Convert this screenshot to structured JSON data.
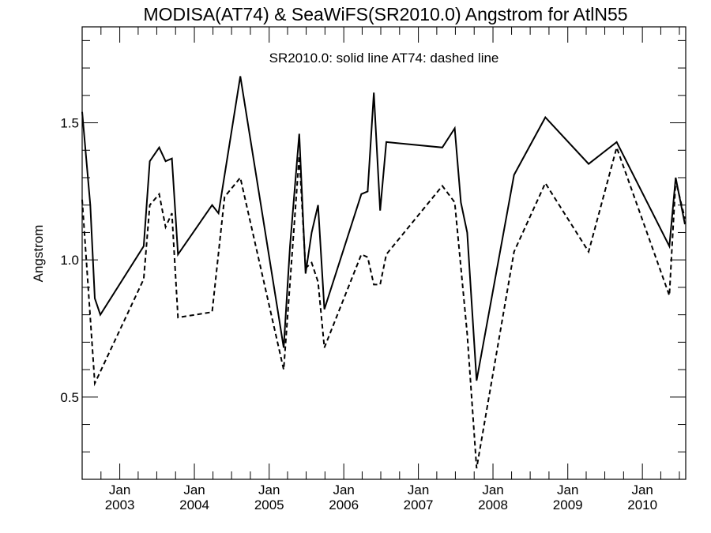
{
  "chart_data": {
    "type": "line",
    "title": "MODISA(AT74) & SeaWiFS(SR2010.0)  Angstrom for AtlN55",
    "annotation": "SR2010.0: solid line   AT74: dashed line",
    "ylabel": "Angstrom",
    "xlabel": "",
    "xlim": [
      "2002-07-01",
      "2010-08-01"
    ],
    "ylim": [
      0.2,
      1.85
    ],
    "y_ticks": [
      0.5,
      1.0,
      1.5
    ],
    "y_tick_labels": [
      "0.5",
      "1.0",
      "1.5"
    ],
    "x_ticks": [
      {
        "date": "2003-01-01",
        "month": "Jan",
        "year": "2003"
      },
      {
        "date": "2004-01-01",
        "month": "Jan",
        "year": "2004"
      },
      {
        "date": "2005-01-01",
        "month": "Jan",
        "year": "2005"
      },
      {
        "date": "2006-01-01",
        "month": "Jan",
        "year": "2006"
      },
      {
        "date": "2007-01-01",
        "month": "Jan",
        "year": "2007"
      },
      {
        "date": "2008-01-01",
        "month": "Jan",
        "year": "2008"
      },
      {
        "date": "2009-01-01",
        "month": "Jan",
        "year": "2009"
      },
      {
        "date": "2010-01-01",
        "month": "Jan",
        "year": "2010"
      }
    ],
    "grid": false,
    "series": [
      {
        "label": "SR2010.0",
        "style": "solid",
        "color": "#000000",
        "points": [
          [
            "2002-07-01",
            1.54
          ],
          [
            "2002-08-10",
            1.2
          ],
          [
            "2002-09-01",
            0.86
          ],
          [
            "2002-09-28",
            0.8
          ],
          [
            "2003-04-28",
            1.05
          ],
          [
            "2003-05-28",
            1.36
          ],
          [
            "2003-07-13",
            1.41
          ],
          [
            "2003-08-13",
            1.36
          ],
          [
            "2003-09-13",
            1.37
          ],
          [
            "2003-10-13",
            1.02
          ],
          [
            "2004-03-28",
            1.2
          ],
          [
            "2004-04-28",
            1.17
          ],
          [
            "2004-08-13",
            1.67
          ],
          [
            "2005-03-13",
            0.68
          ],
          [
            "2005-04-13",
            1.05
          ],
          [
            "2005-05-28",
            1.46
          ],
          [
            "2005-06-28",
            0.95
          ],
          [
            "2005-07-28",
            1.1
          ],
          [
            "2005-08-28",
            1.2
          ],
          [
            "2005-09-28",
            0.82
          ],
          [
            "2006-03-28",
            1.24
          ],
          [
            "2006-04-28",
            1.25
          ],
          [
            "2006-05-28",
            1.61
          ],
          [
            "2006-06-28",
            1.18
          ],
          [
            "2006-07-28",
            1.43
          ],
          [
            "2007-04-28",
            1.41
          ],
          [
            "2007-06-28",
            1.48
          ],
          [
            "2007-07-28",
            1.21
          ],
          [
            "2007-08-28",
            1.1
          ],
          [
            "2007-10-13",
            0.56
          ],
          [
            "2008-04-13",
            1.31
          ],
          [
            "2008-09-13",
            1.52
          ],
          [
            "2009-04-13",
            1.35
          ],
          [
            "2009-08-28",
            1.43
          ],
          [
            "2010-05-13",
            1.05
          ],
          [
            "2010-06-13",
            1.3
          ],
          [
            "2010-07-28",
            1.13
          ]
        ]
      },
      {
        "label": "AT74",
        "style": "dashed",
        "color": "#000000",
        "points": [
          [
            "2002-07-01",
            1.22
          ],
          [
            "2002-09-01",
            0.55
          ],
          [
            "2003-04-28",
            0.93
          ],
          [
            "2003-05-28",
            1.2
          ],
          [
            "2003-07-13",
            1.24
          ],
          [
            "2003-08-13",
            1.12
          ],
          [
            "2003-09-13",
            1.17
          ],
          [
            "2003-10-13",
            0.79
          ],
          [
            "2004-03-28",
            0.81
          ],
          [
            "2004-05-28",
            1.23
          ],
          [
            "2004-08-13",
            1.3
          ],
          [
            "2005-03-13",
            0.6
          ],
          [
            "2005-05-28",
            1.38
          ],
          [
            "2005-06-28",
            0.97
          ],
          [
            "2005-07-28",
            0.99
          ],
          [
            "2005-08-28",
            0.92
          ],
          [
            "2005-09-28",
            0.68
          ],
          [
            "2006-03-28",
            1.02
          ],
          [
            "2006-04-28",
            1.01
          ],
          [
            "2006-05-28",
            0.91
          ],
          [
            "2006-06-28",
            0.91
          ],
          [
            "2006-07-28",
            1.02
          ],
          [
            "2007-04-28",
            1.27
          ],
          [
            "2007-06-28",
            1.21
          ],
          [
            "2007-08-28",
            0.73
          ],
          [
            "2007-10-13",
            0.24
          ],
          [
            "2008-04-13",
            1.03
          ],
          [
            "2008-09-13",
            1.28
          ],
          [
            "2009-04-13",
            1.03
          ],
          [
            "2009-08-28",
            1.41
          ],
          [
            "2010-05-13",
            0.87
          ],
          [
            "2010-06-13",
            1.29
          ],
          [
            "2010-07-28",
            1.15
          ]
        ]
      }
    ]
  }
}
